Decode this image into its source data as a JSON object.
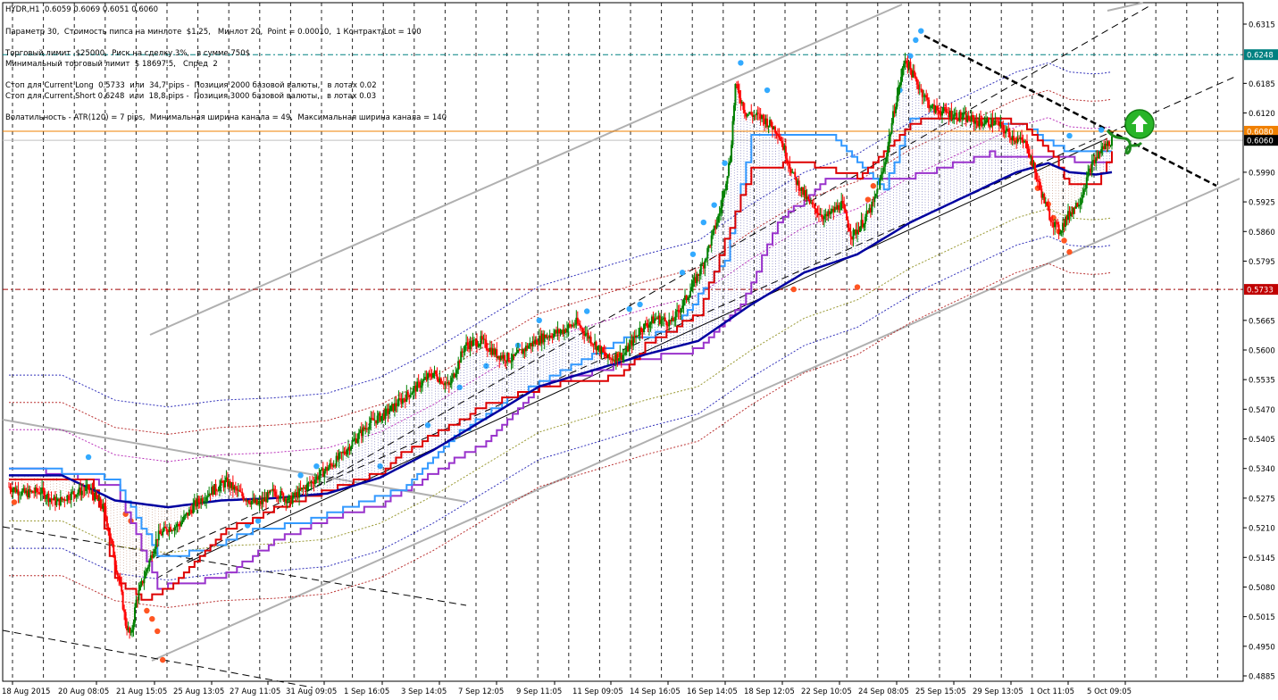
{
  "header": {
    "symbol_line": "HYDR,H1  0.6059 0.6069 0.6051 0.6060",
    "info_lines": [
      "Параметр 30,  Стоимость пипса на минлоте  $1.25,   Минлот 20,  Point = 0.00010,  1 Контракт/Lot = 100",
      "Торговый лимит  $25000,  Риск на сделку 3%,   в сумме 750$",
      "Минимальный торговый лимит  $ 18697.5,   Спред  2",
      "Стоп для Current Long  0.5733  или  34,7 pips -  Позиция 2000 базовой валюты,   в лотах 0.02",
      "Стоп для Current Short 0.6248  или  18,8 pips -  Позиция 3000 базовой валюты,   в лотах 0.03",
      "Волатильность - ATR(120) = 7 pips,  Минимальная ширина канала = 49,  Максимальная ширина канала = 140"
    ]
  },
  "chart_data": {
    "type": "candlestick",
    "symbol": "HYDR",
    "timeframe": "H1",
    "ohlc_current": {
      "open": 0.6059,
      "high": 0.6069,
      "low": 0.6051,
      "close": 0.606
    },
    "y_ticks": [
      "0.6315",
      "0.6248",
      "0.6185",
      "0.6120",
      "0.6080",
      "0.6060",
      "0.5990",
      "0.5925",
      "0.5860",
      "0.5795",
      "0.5733",
      "0.5665",
      "0.5600",
      "0.5535",
      "0.5470",
      "0.5405",
      "0.5340",
      "0.5275",
      "0.5210",
      "0.5145",
      "0.5080",
      "0.5015",
      "0.4950",
      "0.4885"
    ],
    "x_ticks": [
      "18 Aug 2015",
      "20 Aug 08:05",
      "21 Aug 15:05",
      "25 Aug 13:05",
      "27 Aug 11:05",
      "31 Aug 09:05",
      "1 Sep 16:05",
      "3 Sep 14:05",
      "7 Sep 12:05",
      "9 Sep 11:05",
      "11 Sep 09:05",
      "14 Sep 16:05",
      "16 Sep 14:05",
      "18 Sep 12:05",
      "22 Sep 10:05",
      "24 Sep 08:05",
      "25 Sep 15:05",
      "29 Sep 13:05",
      "1 Oct 11:05",
      "5 Oct 09:05"
    ],
    "ylim": [
      0.4885,
      0.6315
    ],
    "price_levels": [
      {
        "label": "0.6248",
        "value": 0.6248,
        "color": "#008080",
        "style": "dash-dot"
      },
      {
        "label": "0.6080",
        "value": 0.608,
        "color": "#f08000",
        "style": "solid"
      },
      {
        "label": "0.6060",
        "value": 0.606,
        "color": "#c0c0c0",
        "style": "solid"
      },
      {
        "label": "0.5733",
        "value": 0.5733,
        "color": "#a00000",
        "style": "dash-dot"
      }
    ],
    "close_path": [
      [
        0,
        0.53
      ],
      [
        3,
        0.5285
      ],
      [
        6,
        0.529
      ],
      [
        9,
        0.5265
      ],
      [
        12,
        0.5285
      ],
      [
        15,
        0.5295
      ],
      [
        18,
        0.525
      ],
      [
        21,
        0.508
      ],
      [
        22,
        0.5
      ],
      [
        23,
        0.497
      ],
      [
        24,
        0.505
      ],
      [
        26,
        0.512
      ],
      [
        28,
        0.519
      ],
      [
        30,
        0.521
      ],
      [
        32,
        0.5215
      ],
      [
        35,
        0.526
      ],
      [
        38,
        0.529
      ],
      [
        41,
        0.531
      ],
      [
        44,
        0.528
      ],
      [
        47,
        0.526
      ],
      [
        50,
        0.529
      ],
      [
        53,
        0.527
      ],
      [
        56,
        0.53
      ],
      [
        59,
        0.533
      ],
      [
        62,
        0.536
      ],
      [
        65,
        0.54
      ],
      [
        68,
        0.544
      ],
      [
        71,
        0.546
      ],
      [
        74,
        0.549
      ],
      [
        77,
        0.552
      ],
      [
        80,
        0.555
      ],
      [
        83,
        0.552
      ],
      [
        86,
        0.561
      ],
      [
        89,
        0.562
      ],
      [
        92,
        0.559
      ],
      [
        95,
        0.558
      ],
      [
        98,
        0.561
      ],
      [
        101,
        0.563
      ],
      [
        104,
        0.564
      ],
      [
        107,
        0.566
      ],
      [
        110,
        0.562
      ],
      [
        113,
        0.558
      ],
      [
        116,
        0.559
      ],
      [
        119,
        0.5645
      ],
      [
        122,
        0.567
      ],
      [
        125,
        0.566
      ],
      [
        128,
        0.572
      ],
      [
        131,
        0.579
      ],
      [
        134,
        0.59
      ],
      [
        136,
        0.602
      ],
      [
        137,
        0.618
      ],
      [
        139,
        0.612
      ],
      [
        142,
        0.611
      ],
      [
        145,
        0.608
      ],
      [
        148,
        0.598
      ],
      [
        151,
        0.592
      ],
      [
        154,
        0.589
      ],
      [
        157,
        0.592
      ],
      [
        159,
        0.585
      ],
      [
        161,
        0.588
      ],
      [
        163,
        0.592
      ],
      [
        165,
        0.6
      ],
      [
        167,
        0.613
      ],
      [
        169,
        0.624
      ],
      [
        171,
        0.619
      ],
      [
        174,
        0.613
      ],
      [
        177,
        0.612
      ],
      [
        180,
        0.611
      ],
      [
        183,
        0.61
      ],
      [
        186,
        0.61
      ],
      [
        189,
        0.607
      ],
      [
        192,
        0.605
      ],
      [
        194,
        0.597
      ],
      [
        196,
        0.59
      ],
      [
        198,
        0.586
      ],
      [
        200,
        0.59
      ],
      [
        202,
        0.593
      ],
      [
        204,
        0.6
      ],
      [
        206,
        0.604
      ],
      [
        208,
        0.606
      ]
    ],
    "ma_blue": [
      [
        0,
        0.5325
      ],
      [
        10,
        0.5325
      ],
      [
        20,
        0.527
      ],
      [
        30,
        0.5255
      ],
      [
        40,
        0.527
      ],
      [
        50,
        0.5275
      ],
      [
        60,
        0.5285
      ],
      [
        70,
        0.532
      ],
      [
        80,
        0.538
      ],
      [
        90,
        0.545
      ],
      [
        100,
        0.552
      ],
      [
        110,
        0.5555
      ],
      [
        120,
        0.559
      ],
      [
        130,
        0.562
      ],
      [
        140,
        0.57
      ],
      [
        150,
        0.577
      ],
      [
        160,
        0.581
      ],
      [
        170,
        0.588
      ],
      [
        180,
        0.5935
      ],
      [
        190,
        0.599
      ],
      [
        196,
        0.601
      ],
      [
        200,
        0.599
      ],
      [
        205,
        0.5985
      ],
      [
        208,
        0.599
      ]
    ],
    "band_red": [
      [
        0,
        0.532
      ],
      [
        10,
        0.532
      ],
      [
        15,
        0.532
      ],
      [
        17,
        0.526
      ],
      [
        20,
        0.51
      ],
      [
        25,
        0.505
      ],
      [
        30,
        0.508
      ],
      [
        40,
        0.52
      ],
      [
        50,
        0.525
      ],
      [
        60,
        0.529
      ],
      [
        70,
        0.533
      ],
      [
        75,
        0.538
      ],
      [
        90,
        0.548
      ],
      [
        95,
        0.55
      ],
      [
        105,
        0.553
      ],
      [
        115,
        0.554
      ],
      [
        120,
        0.561
      ],
      [
        130,
        0.568
      ],
      [
        140,
        0.6
      ],
      [
        150,
        0.601
      ],
      [
        160,
        0.598
      ],
      [
        170,
        0.61
      ],
      [
        180,
        0.611
      ],
      [
        190,
        0.61
      ],
      [
        196,
        0.604
      ],
      [
        200,
        0.596
      ],
      [
        205,
        0.596
      ],
      [
        208,
        0.604
      ]
    ],
    "band_blue_light": [
      [
        0,
        0.534
      ],
      [
        15,
        0.533
      ],
      [
        20,
        0.531
      ],
      [
        28,
        0.515
      ],
      [
        35,
        0.5155
      ],
      [
        45,
        0.52
      ],
      [
        55,
        0.522
      ],
      [
        65,
        0.526
      ],
      [
        75,
        0.53
      ],
      [
        85,
        0.542
      ],
      [
        95,
        0.55
      ],
      [
        105,
        0.556
      ],
      [
        115,
        0.562
      ],
      [
        125,
        0.564
      ],
      [
        135,
        0.58
      ],
      [
        140,
        0.607
      ],
      [
        155,
        0.607
      ],
      [
        165,
        0.595
      ],
      [
        170,
        0.611
      ],
      [
        190,
        0.61
      ],
      [
        200,
        0.603
      ],
      [
        208,
        0.604
      ]
    ],
    "band_purple": [
      [
        0,
        0.534
      ],
      [
        10,
        0.533
      ],
      [
        20,
        0.53
      ],
      [
        28,
        0.508
      ],
      [
        40,
        0.51
      ],
      [
        50,
        0.518
      ],
      [
        60,
        0.523
      ],
      [
        70,
        0.526
      ],
      [
        80,
        0.533
      ],
      [
        90,
        0.54
      ],
      [
        100,
        0.552
      ],
      [
        110,
        0.555
      ],
      [
        120,
        0.558
      ],
      [
        130,
        0.56
      ],
      [
        138,
        0.57
      ],
      [
        145,
        0.588
      ],
      [
        155,
        0.598
      ],
      [
        165,
        0.598
      ],
      [
        170,
        0.598
      ],
      [
        185,
        0.603
      ],
      [
        195,
        0.602
      ],
      [
        208,
        0.6015
      ]
    ],
    "axes": {
      "xlabel": "",
      "ylabel": ""
    }
  },
  "colors": {
    "bull": "#008000",
    "bear": "#ff0000",
    "ma": "#0000a0",
    "accent_arrow": "#22aa22"
  }
}
